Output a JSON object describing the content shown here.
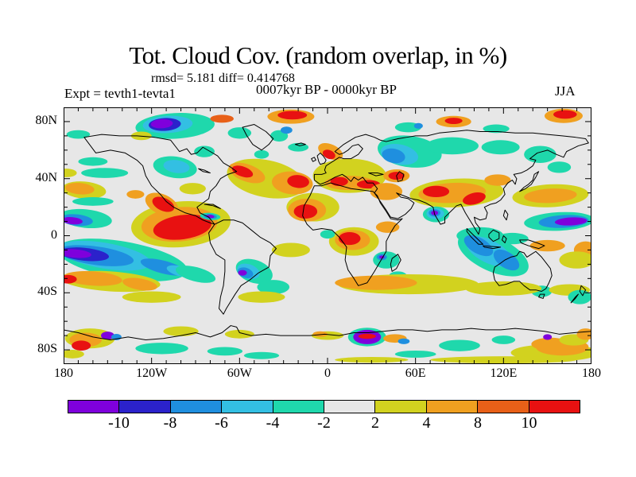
{
  "header": {
    "title": "Tot. Cloud Cov. (random overlap, in %)",
    "stats": "rmsd= 5.181 diff= 0.414768",
    "period": "0007kyr BP - 0000kyr BP",
    "experiment": "Expt = tevth1-tevta1",
    "season": "JJA"
  },
  "axes": {
    "lat_labels": [
      "80N",
      "40N",
      "0",
      "40S",
      "80S"
    ],
    "lon_labels": [
      "180",
      "120W",
      "60W",
      "0",
      "60E",
      "120E",
      "180"
    ]
  },
  "colorbar": {
    "tick_labels": [
      "-10",
      "-8",
      "-6",
      "-4",
      "-2",
      "2",
      "4",
      "8",
      "10"
    ]
  },
  "chart_data": {
    "type": "heatmap",
    "subtype": "filled_contour_world_map_anomaly",
    "title": "Tot. Cloud Cov. (random overlap, in %)",
    "variable": "Total cloud cover difference",
    "units": "%",
    "experiment": "tevth1-tevta1",
    "period": "0007kyr BP - 0000kyr BP",
    "season": "JJA",
    "value_stats": {
      "rmsd": 5.181,
      "diff": 0.414768
    },
    "lon_range": [
      -180,
      180
    ],
    "lat_range": [
      -90,
      90
    ],
    "levels": [
      -10,
      -8,
      -6,
      -4,
      -2,
      2,
      4,
      8,
      10
    ],
    "band_colors": [
      "#7F00DC",
      "#2B22CB",
      "#1F8FDF",
      "#33BFE3",
      "#1FD8AC",
      "#E7E7E7",
      "#D2D21F",
      "#F0A020",
      "#E86018",
      "#E81111"
    ],
    "neutral_band": "-2 to 2",
    "regions_format": "[lon_deg, lat_deg, rx_deg, ry_deg, rotation_deg, level_percent]",
    "anomaly_regions": [
      [
        -104,
        77,
        27,
        9,
        3,
        -3
      ],
      [
        -109,
        78,
        17,
        6,
        3,
        -5
      ],
      [
        -111,
        78,
        11,
        4.5,
        3,
        -9
      ],
      [
        -113,
        78.5,
        7.5,
        3.2,
        3,
        -11
      ],
      [
        -72,
        82,
        8,
        2.8,
        0,
        9
      ],
      [
        -60,
        72,
        8,
        4,
        0,
        -3
      ],
      [
        -33,
        70,
        6,
        4,
        0,
        -3
      ],
      [
        -28,
        74,
        4,
        2.5,
        0,
        -7
      ],
      [
        -25,
        83.5,
        16,
        5,
        0,
        6
      ],
      [
        -24,
        84.5,
        10,
        3,
        0,
        11
      ],
      [
        161,
        84,
        13,
        5,
        0,
        6
      ],
      [
        162,
        85,
        8,
        3,
        0,
        11
      ],
      [
        86,
        80,
        12,
        4,
        0,
        6
      ],
      [
        86,
        80.5,
        6,
        2.2,
        0,
        11
      ],
      [
        55,
        76,
        9,
        3.5,
        0,
        -3
      ],
      [
        62,
        77,
        3,
        2,
        0,
        -7
      ],
      [
        -170,
        71,
        8,
        3,
        0,
        -3
      ],
      [
        115,
        75,
        9,
        3,
        0,
        -3
      ],
      [
        -127,
        70,
        7,
        3,
        0,
        3
      ],
      [
        -104,
        48,
        15,
        7.5,
        -8,
        -3
      ],
      [
        -103,
        48.5,
        9,
        4.5,
        -8,
        -5
      ],
      [
        -84,
        59,
        7,
        4,
        0,
        -3
      ],
      [
        -92,
        33,
        9,
        4,
        0,
        3
      ],
      [
        -42,
        40,
        27,
        13,
        -12,
        3
      ],
      [
        -55,
        44,
        13,
        6,
        -20,
        6
      ],
      [
        -58,
        45,
        7.5,
        3.5,
        -20,
        11
      ],
      [
        -24,
        37,
        14,
        8,
        -5,
        6
      ],
      [
        -20,
        38,
        7.5,
        4.5,
        -5,
        11
      ],
      [
        -20,
        62,
        7,
        3,
        0,
        -3
      ],
      [
        -45,
        57,
        5,
        3,
        0,
        -3
      ],
      [
        -10,
        20,
        18,
        10,
        0,
        3
      ],
      [
        -14,
        18,
        13,
        8,
        0,
        6
      ],
      [
        -15,
        17,
        8,
        5,
        0,
        11
      ],
      [
        15,
        42,
        25,
        12,
        0,
        3
      ],
      [
        2,
        59,
        9,
        5,
        -25,
        6
      ],
      [
        1,
        57,
        4.5,
        3,
        -25,
        11
      ],
      [
        15,
        37,
        17,
        5,
        0,
        6
      ],
      [
        8,
        38,
        6,
        3.2,
        0,
        11
      ],
      [
        28,
        36,
        8,
        3,
        0,
        11
      ],
      [
        40,
        31,
        11,
        6,
        0,
        6
      ],
      [
        47,
        42,
        9,
        4.5,
        0,
        6
      ],
      [
        47,
        42,
        5.5,
        2.8,
        0,
        11
      ],
      [
        56,
        59,
        22,
        11,
        -8,
        -3
      ],
      [
        49,
        57,
        13,
        7,
        -12,
        -5
      ],
      [
        45,
        56,
        8,
        5,
        -12,
        -7
      ],
      [
        85,
        63,
        18,
        6,
        0,
        -3
      ],
      [
        118,
        62,
        13,
        5,
        0,
        -3
      ],
      [
        145,
        57,
        11,
        6,
        0,
        -3
      ],
      [
        158,
        48,
        8,
        4,
        0,
        -3
      ],
      [
        88,
        30,
        32,
        10,
        3,
        3
      ],
      [
        85,
        30,
        23,
        7,
        3,
        6
      ],
      [
        74,
        31,
        9,
        4,
        0,
        11
      ],
      [
        100,
        26,
        8,
        4,
        15,
        11
      ],
      [
        116,
        39,
        9,
        4,
        0,
        6
      ],
      [
        74,
        15,
        9,
        5.5,
        0,
        -3
      ],
      [
        73.5,
        15.5,
        6,
        3.8,
        0,
        -5
      ],
      [
        73,
        16,
        4,
        2.6,
        0,
        -7
      ],
      [
        73,
        16,
        2.4,
        1.6,
        0,
        -11
      ],
      [
        152,
        28,
        26,
        8,
        3,
        3
      ],
      [
        152,
        28,
        18,
        5,
        3,
        6
      ],
      [
        -166,
        32,
        15,
        6,
        -5,
        3
      ],
      [
        -169,
        33,
        10,
        4,
        -5,
        6
      ],
      [
        -131,
        29,
        6,
        3,
        0,
        6
      ],
      [
        -152,
        44,
        16,
        3.5,
        0,
        -3
      ],
      [
        -160,
        52,
        10,
        3,
        0,
        -3
      ],
      [
        -178,
        44,
        7,
        3,
        0,
        3
      ],
      [
        158,
        10,
        24,
        6.5,
        3,
        -3
      ],
      [
        161,
        10,
        17,
        4.5,
        3,
        -7
      ],
      [
        166,
        10,
        11,
        2.8,
        3,
        -11
      ],
      [
        -165,
        12,
        18,
        6.5,
        -6,
        -3
      ],
      [
        -171,
        11,
        11,
        4,
        -6,
        -7
      ],
      [
        -174,
        10.5,
        7,
        2.5,
        -6,
        -11
      ],
      [
        -160,
        24,
        14,
        3,
        0,
        -3
      ],
      [
        104,
        0,
        16,
        6,
        0,
        -3
      ],
      [
        126,
        -2,
        11,
        4,
        0,
        -3
      ],
      [
        113,
        -13,
        26,
        12,
        -25,
        -3
      ],
      [
        110,
        -11,
        17,
        8,
        -28,
        -5
      ],
      [
        103,
        -7,
        11,
        5.5,
        -30,
        -7
      ],
      [
        122,
        -17,
        10,
        5.5,
        -35,
        -7
      ],
      [
        146,
        -39,
        7,
        4,
        0,
        -3
      ],
      [
        150,
        -7,
        12,
        4,
        0,
        6
      ],
      [
        176,
        -10,
        8,
        6,
        0,
        6
      ],
      [
        170,
        -17,
        12,
        6,
        0,
        3
      ],
      [
        18,
        -4,
        17,
        10,
        0,
        3
      ],
      [
        17,
        -3,
        12,
        7,
        0,
        6
      ],
      [
        15,
        -2,
        7.5,
        4.5,
        0,
        11
      ],
      [
        41,
        6,
        8,
        4,
        0,
        6
      ],
      [
        0,
        1,
        5,
        3,
        0,
        -3
      ],
      [
        40,
        -17,
        9,
        6,
        0,
        -3
      ],
      [
        37,
        -15,
        3.5,
        2.2,
        0,
        -7
      ],
      [
        37,
        -15,
        1.8,
        1.1,
        0,
        -11
      ],
      [
        48,
        -28,
        6,
        3,
        0,
        -3
      ],
      [
        -100,
        8,
        34,
        16,
        5,
        3
      ],
      [
        -101,
        8,
        26,
        12,
        5,
        6
      ],
      [
        -99,
        6,
        20,
        8.5,
        8,
        11
      ],
      [
        -113,
        22,
        12,
        7,
        -25,
        6
      ],
      [
        -112,
        22,
        8,
        4.5,
        -25,
        11
      ],
      [
        -80,
        13.5,
        7,
        2.5,
        -5,
        -3
      ],
      [
        -80,
        13.5,
        4.5,
        1.7,
        -5,
        -7
      ],
      [
        -80,
        13.5,
        2.8,
        1.1,
        -5,
        -11
      ],
      [
        -25,
        -10,
        13,
        5,
        0,
        3
      ],
      [
        -50,
        -25,
        13,
        8,
        -20,
        -3
      ],
      [
        -54,
        -25,
        8,
        5,
        -20,
        -5
      ],
      [
        -56,
        -26,
        5.5,
        3.5,
        -20,
        -7
      ],
      [
        -58,
        -26,
        3,
        2,
        0,
        -11
      ],
      [
        -37,
        -36,
        11,
        5,
        0,
        -3
      ],
      [
        -140,
        -17,
        45,
        13,
        -10,
        -3
      ],
      [
        -152,
        -14,
        32,
        9,
        -10,
        -5
      ],
      [
        -158,
        -14,
        26,
        6.5,
        -8,
        -7
      ],
      [
        -166,
        -13,
        17,
        4.5,
        -6,
        -9
      ],
      [
        -172,
        -12.5,
        11,
        3,
        -5,
        -11
      ],
      [
        -112,
        -22,
        16,
        4.5,
        -15,
        -7
      ],
      [
        -100,
        -25,
        10,
        3.5,
        -15,
        -5
      ],
      [
        -90,
        -27,
        14,
        5,
        -15,
        -3
      ],
      [
        -148,
        -32,
        34,
        7,
        -4,
        3
      ],
      [
        -160,
        -30,
        20,
        5,
        -4,
        6
      ],
      [
        -177,
        -30.5,
        6,
        3,
        0,
        11
      ],
      [
        -128,
        -34,
        12,
        4,
        -10,
        6
      ],
      [
        -120,
        -43,
        20,
        4,
        0,
        3
      ],
      [
        -45,
        -43,
        16,
        4,
        0,
        3
      ],
      [
        55,
        -34,
        48,
        7,
        0,
        3
      ],
      [
        33,
        -33,
        28,
        5,
        0,
        6
      ],
      [
        120,
        -37,
        26,
        5,
        0,
        3
      ],
      [
        165,
        -38,
        14,
        4,
        0,
        3
      ],
      [
        172,
        -43,
        8,
        5,
        0,
        -3
      ],
      [
        -100,
        -67,
        12,
        3.5,
        0,
        3
      ],
      [
        -60,
        -69,
        10,
        3,
        0,
        3
      ],
      [
        0,
        -70,
        11,
        3,
        0,
        3
      ],
      [
        -5,
        -69,
        5,
        2,
        0,
        6
      ],
      [
        -162,
        -72,
        17,
        7,
        0,
        3
      ],
      [
        -165,
        -73,
        11,
        5,
        0,
        6
      ],
      [
        -168,
        -77,
        6.5,
        3.5,
        0,
        11
      ],
      [
        -150,
        -70,
        4.5,
        2.8,
        0,
        -11
      ],
      [
        -144,
        -71,
        3.5,
        2.2,
        0,
        -7
      ],
      [
        -113,
        -79,
        18,
        4,
        0,
        -3
      ],
      [
        -70,
        -81,
        12,
        3,
        0,
        -3
      ],
      [
        -45,
        -84,
        12,
        2.5,
        0,
        -3
      ],
      [
        -174,
        -83,
        8,
        3,
        0,
        3
      ],
      [
        27,
        -71,
        13,
        6.5,
        0,
        -3
      ],
      [
        27,
        -71,
        9.5,
        5,
        0,
        -11
      ],
      [
        27,
        -70.5,
        6,
        1.8,
        0,
        11
      ],
      [
        46,
        -72,
        8,
        3,
        0,
        6
      ],
      [
        52,
        -74,
        4,
        2,
        0,
        -7
      ],
      [
        90,
        -77,
        14,
        4,
        0,
        -3
      ],
      [
        120,
        -73,
        8,
        3,
        0,
        -3
      ],
      [
        60,
        -83,
        14,
        2.5,
        0,
        -3
      ],
      [
        155,
        -82,
        30,
        6,
        0,
        3
      ],
      [
        160,
        -78,
        18,
        6,
        0,
        6
      ],
      [
        152,
        -76,
        13,
        4.5,
        0,
        6
      ],
      [
        168,
        -73,
        10,
        4,
        0,
        3
      ],
      [
        150,
        -71,
        3,
        2,
        0,
        -11
      ],
      [
        176,
        -69,
        6,
        4,
        0,
        6
      ],
      [
        120,
        -87,
        50,
        2.5,
        0,
        3
      ],
      [
        30,
        -87,
        25,
        2,
        0,
        3
      ]
    ]
  }
}
